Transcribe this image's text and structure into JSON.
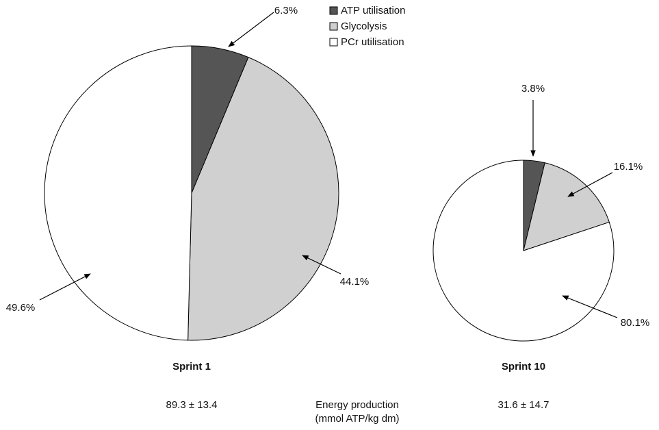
{
  "chart_data": [
    {
      "type": "pie",
      "title": "Sprint 1",
      "categories": [
        "ATP utilisation",
        "Glycolysis",
        "PCr utilisation"
      ],
      "values": [
        6.3,
        44.1,
        49.6
      ],
      "value_labels": [
        "6.3%",
        "44.1%",
        "49.6%"
      ],
      "colors": [
        "#555555",
        "#d0d0d0",
        "#ffffff"
      ],
      "annotation": "89.3 ± 13.4"
    },
    {
      "type": "pie",
      "title": "Sprint 10",
      "categories": [
        "ATP utilisation",
        "Glycolysis",
        "PCr utilisation"
      ],
      "values": [
        3.8,
        16.1,
        80.1
      ],
      "value_labels": [
        "3.8%",
        "16.1%",
        "80.1%"
      ],
      "colors": [
        "#555555",
        "#d0d0d0",
        "#ffffff"
      ],
      "annotation": "31.6 ± 14.7"
    }
  ],
  "center_label": [
    "Energy production",
    "(mmol ATP/kg dm)"
  ]
}
